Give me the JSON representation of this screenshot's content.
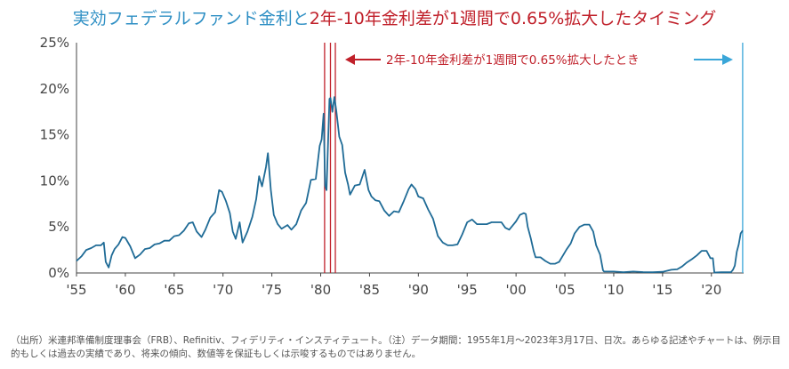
{
  "title": {
    "part1": "実効フェデラルファンド金利と",
    "part2": "2年-10年金利差が1週間で0.65%拡大したタイミング"
  },
  "annotation": {
    "text": "2年-10年金利差が1週間で0.65%拡大したとき"
  },
  "source_note": "（出所）米連邦準備制度理事会（FRB）、Refinitiv、フィデリティ・インスティテュート。（注）データ期間：1955年1月～2023年3月17日、日次。あらゆる記述やチャートは、例示目的もしくは過去の実績であり、将来の傾向、数値等を保証もしくは示唆するものではありません。",
  "colors": {
    "series": "#1f6b96",
    "event_line_red": "#c0202a",
    "event_line_blue": "#3aa6d8",
    "title_blue": "#2e8fc4",
    "title_red": "#c0202a"
  },
  "chart_data": {
    "type": "line",
    "series": [
      {
        "name": "実効フェデラルファンド金利",
        "x": [
          1955.0,
          1955.5,
          1956.0,
          1956.5,
          1957.0,
          1957.5,
          1957.8,
          1958.0,
          1958.3,
          1958.6,
          1958.9,
          1959.3,
          1959.7,
          1960.0,
          1960.5,
          1961.0,
          1961.5,
          1962.0,
          1962.5,
          1963.0,
          1963.5,
          1964.0,
          1964.5,
          1965.0,
          1965.5,
          1966.0,
          1966.5,
          1966.9,
          1967.3,
          1967.8,
          1968.2,
          1968.7,
          1969.2,
          1969.6,
          1969.9,
          1970.3,
          1970.7,
          1971.0,
          1971.3,
          1971.7,
          1972.0,
          1972.5,
          1973.0,
          1973.4,
          1973.7,
          1974.0,
          1974.4,
          1974.6,
          1974.9,
          1975.2,
          1975.6,
          1976.0,
          1976.6,
          1977.0,
          1977.5,
          1978.0,
          1978.5,
          1979.0,
          1979.5,
          1979.9,
          1980.1,
          1980.3,
          1980.45,
          1980.6,
          1980.9,
          1981.0,
          1981.2,
          1981.4,
          1981.6,
          1981.9,
          1982.2,
          1982.5,
          1982.8,
          1983.0,
          1983.5,
          1984.0,
          1984.5,
          1984.9,
          1985.2,
          1985.6,
          1986.0,
          1986.5,
          1987.0,
          1987.5,
          1988.0,
          1988.5,
          1989.0,
          1989.3,
          1989.7,
          1990.0,
          1990.5,
          1991.0,
          1991.5,
          1992.0,
          1992.5,
          1993.0,
          1993.5,
          1994.0,
          1994.5,
          1995.0,
          1995.5,
          1996.0,
          1996.5,
          1997.0,
          1997.5,
          1998.0,
          1998.5,
          1998.9,
          1999.3,
          1999.7,
          2000.0,
          2000.4,
          2000.8,
          2001.0,
          2001.2,
          2001.5,
          2001.8,
          2002.0,
          2002.5,
          2003.0,
          2003.5,
          2004.0,
          2004.4,
          2004.8,
          2005.2,
          2005.6,
          2006.0,
          2006.5,
          2007.0,
          2007.5,
          2007.9,
          2008.2,
          2008.6,
          2008.9,
          2009.0,
          2010.0,
          2011.0,
          2012.0,
          2013.0,
          2014.0,
          2015.0,
          2015.9,
          2016.5,
          2017.0,
          2017.5,
          2018.0,
          2018.5,
          2019.0,
          2019.5,
          2019.9,
          2020.15,
          2020.3,
          2021.0,
          2021.5,
          2022.0,
          2022.2,
          2022.4,
          2022.6,
          2022.8,
          2023.0,
          2023.2
        ],
        "values": [
          1.3,
          1.8,
          2.5,
          2.7,
          3.0,
          3.0,
          3.3,
          1.2,
          0.6,
          1.9,
          2.6,
          3.1,
          3.9,
          3.8,
          2.9,
          1.6,
          2.0,
          2.6,
          2.7,
          3.1,
          3.2,
          3.5,
          3.5,
          4.0,
          4.1,
          4.6,
          5.4,
          5.5,
          4.5,
          3.9,
          4.7,
          6.0,
          6.6,
          9.0,
          8.8,
          7.8,
          6.5,
          4.5,
          3.7,
          5.5,
          3.3,
          4.5,
          6.1,
          8.0,
          10.5,
          9.4,
          11.5,
          13.0,
          9.0,
          6.3,
          5.3,
          4.8,
          5.2,
          4.7,
          5.3,
          6.8,
          7.6,
          10.1,
          10.2,
          13.8,
          14.5,
          17.3,
          9.5,
          9.0,
          18.9,
          19.0,
          17.5,
          19.1,
          17.6,
          14.8,
          13.9,
          10.9,
          9.6,
          8.5,
          9.5,
          9.6,
          11.2,
          9.0,
          8.3,
          7.9,
          7.8,
          6.8,
          6.2,
          6.7,
          6.6,
          7.8,
          9.1,
          9.6,
          9.1,
          8.3,
          8.1,
          6.9,
          5.9,
          4.0,
          3.3,
          3.0,
          3.0,
          3.1,
          4.2,
          5.5,
          5.8,
          5.3,
          5.3,
          5.3,
          5.5,
          5.5,
          5.5,
          4.9,
          4.7,
          5.2,
          5.6,
          6.3,
          6.5,
          6.4,
          5.0,
          3.8,
          2.4,
          1.7,
          1.7,
          1.3,
          1.0,
          1.0,
          1.2,
          1.9,
          2.6,
          3.2,
          4.3,
          5.0,
          5.25,
          5.25,
          4.5,
          3.0,
          2.0,
          0.3,
          0.16,
          0.15,
          0.09,
          0.15,
          0.1,
          0.09,
          0.13,
          0.35,
          0.4,
          0.7,
          1.15,
          1.5,
          1.9,
          2.4,
          2.4,
          1.6,
          1.6,
          0.05,
          0.08,
          0.08,
          0.08,
          0.33,
          0.8,
          2.3,
          3.1,
          4.3,
          4.6
        ]
      }
    ],
    "event_lines": [
      {
        "x": 1980.4,
        "color": "red"
      },
      {
        "x": 1981.0,
        "color": "red"
      },
      {
        "x": 1981.5,
        "color": "red"
      },
      {
        "x": 2023.2,
        "color": "blue"
      }
    ],
    "x_ticks": [
      1955,
      1960,
      1965,
      1970,
      1975,
      1980,
      1985,
      1990,
      1995,
      2000,
      2005,
      2010,
      2015,
      2020
    ],
    "x_tick_labels": [
      "'55",
      "'60",
      "'65",
      "'70",
      "'75",
      "'80",
      "'85",
      "'90",
      "'95",
      "'00",
      "'05",
      "'10",
      "'15",
      "'20"
    ],
    "y_ticks": [
      0,
      5,
      10,
      15,
      20,
      25
    ],
    "y_tick_labels": [
      "0%",
      "5%",
      "10%",
      "15%",
      "20%",
      "25%"
    ],
    "xlim": [
      1955,
      2023.3
    ],
    "ylim": [
      0,
      25
    ],
    "grid": false,
    "legend": "none"
  }
}
